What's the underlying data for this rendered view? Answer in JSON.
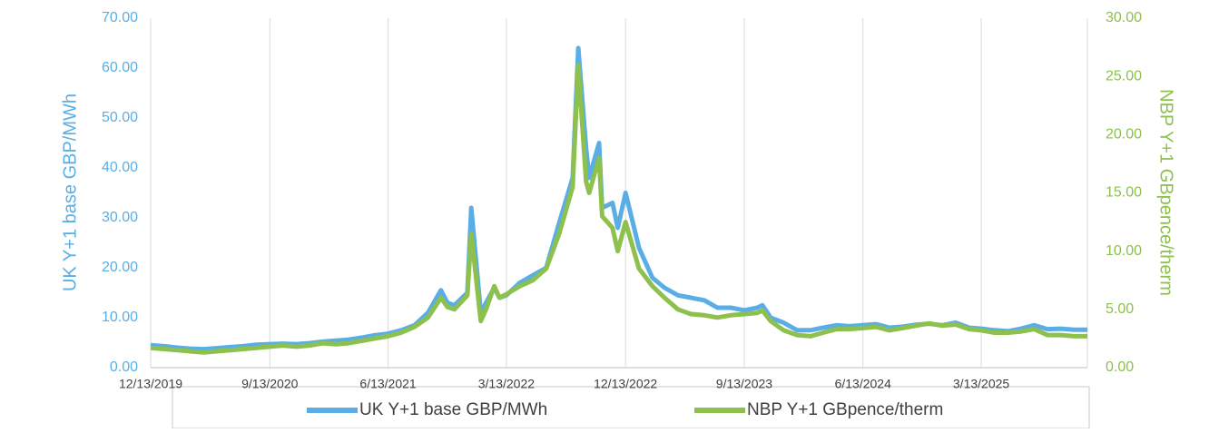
{
  "chart_data": {
    "type": "line",
    "y_label": "UK Y+1 base GBP/MWh",
    "y2_label": "NBP Y+1 GBpence/therm",
    "x": [
      "12/13/2019",
      "1/13/2020",
      "2/13/2020",
      "3/13/2020",
      "4/13/2020",
      "5/13/2020",
      "6/13/2020",
      "7/13/2020",
      "8/13/2020",
      "9/13/2020",
      "10/13/2020",
      "11/13/2020",
      "12/13/2020",
      "1/13/2021",
      "2/13/2021",
      "3/13/2021",
      "4/13/2021",
      "5/13/2021",
      "6/13/2021",
      "7/13/2021",
      "8/13/2021",
      "9/13/2021",
      "10/13/2021",
      "10/28/2021",
      "11/13/2021",
      "12/13/2021",
      "12/22/2021",
      "1/13/2022",
      "1/25/2022",
      "2/13/2022",
      "2/25/2022",
      "3/13/2022",
      "4/13/2022",
      "5/13/2022",
      "6/13/2022",
      "7/13/2022",
      "8/13/2022",
      "8/26/2022",
      "9/13/2022",
      "9/20/2022",
      "10/13/2022",
      "10/20/2022",
      "11/13/2022",
      "11/25/2022",
      "12/13/2022",
      "1/13/2023",
      "2/13/2023",
      "3/13/2023",
      "4/13/2023",
      "5/13/2023",
      "6/13/2023",
      "7/13/2023",
      "8/13/2023",
      "9/13/2023",
      "10/13/2023",
      "10/25/2023",
      "11/13/2023",
      "12/13/2023",
      "1/13/2024",
      "2/13/2024",
      "3/13/2024",
      "4/13/2024",
      "5/13/2024",
      "6/13/2024",
      "7/13/2024",
      "8/13/2024",
      "9/13/2024",
      "10/13/2024",
      "11/13/2024",
      "12/13/2024",
      "1/13/2025",
      "2/13/2025",
      "3/13/2025",
      "4/13/2025",
      "5/13/2025",
      "6/13/2025",
      "7/13/2025",
      "8/13/2025",
      "9/13/2025",
      "10/13/2025",
      "11/13/2025"
    ],
    "series": [
      {
        "name": "UK Y+1 base GBP/MWh",
        "color": "#5aaee6",
        "values": [
          4.5,
          4.3,
          4.0,
          3.8,
          3.7,
          3.9,
          4.1,
          4.3,
          4.6,
          4.7,
          4.8,
          4.7,
          4.9,
          5.2,
          5.4,
          5.6,
          6.0,
          6.5,
          6.8,
          7.5,
          8.5,
          11.0,
          15.5,
          13,
          12.5,
          15,
          32,
          11,
          13,
          16,
          14,
          14.5,
          17,
          18.5,
          20,
          29,
          38,
          64,
          44,
          38,
          45,
          32,
          33,
          28,
          35,
          24,
          18,
          16,
          14.5,
          14,
          13.5,
          12,
          12,
          11.5,
          12,
          12.5,
          10,
          9,
          7.5,
          7.5,
          8,
          8.5,
          8.3,
          8.5,
          8.7,
          8.0,
          8.2,
          8.6,
          8.8,
          8.5,
          9.0,
          8.0,
          7.8,
          7.5,
          7.3,
          7.8,
          8.5,
          7.7,
          7.8,
          7.6,
          7.6
        ]
      },
      {
        "name": "NBP Y+1 GBpence/therm",
        "color": "#8dc04c",
        "axis": "y2",
        "values": [
          1.7,
          1.6,
          1.5,
          1.4,
          1.3,
          1.4,
          1.5,
          1.6,
          1.7,
          1.8,
          1.9,
          1.8,
          1.9,
          2.1,
          2.0,
          2.1,
          2.3,
          2.5,
          2.7,
          3.0,
          3.5,
          4.3,
          6.0,
          5.2,
          5.0,
          6.2,
          11.5,
          4.0,
          5.0,
          7.0,
          6.0,
          6.3,
          7.0,
          7.5,
          8.5,
          11.5,
          15.5,
          26,
          16,
          15,
          18,
          13,
          12,
          10,
          12.5,
          8.5,
          7.0,
          6.0,
          5.0,
          4.6,
          4.5,
          4.3,
          4.5,
          4.6,
          4.7,
          4.9,
          4.0,
          3.2,
          2.8,
          2.7,
          3.0,
          3.3,
          3.3,
          3.4,
          3.5,
          3.2,
          3.4,
          3.6,
          3.8,
          3.6,
          3.7,
          3.3,
          3.2,
          3.0,
          3.0,
          3.1,
          3.3,
          2.8,
          2.8,
          2.7,
          2.7
        ]
      }
    ],
    "xlim": [
      "12/13/2019",
      "11/13/2025"
    ],
    "xticks": [
      "12/13/2019",
      "9/13/2020",
      "6/13/2021",
      "3/13/2022",
      "12/13/2022",
      "9/13/2023",
      "6/13/2024",
      "3/13/2025"
    ],
    "ylim": [
      0,
      70
    ],
    "yticks": [
      {
        "value": 0,
        "label": "0.00"
      },
      {
        "value": 10,
        "label": "10.00"
      },
      {
        "value": 20,
        "label": "20.00"
      },
      {
        "value": 30,
        "label": "30.00"
      },
      {
        "value": 40,
        "label": "40.00"
      },
      {
        "value": 50,
        "label": "50.00"
      },
      {
        "value": 60,
        "label": "60.00"
      },
      {
        "value": 70,
        "label": "70.00"
      }
    ],
    "y2lim": [
      0,
      30
    ],
    "y2ticks": [
      {
        "value": 0,
        "label": "0.00"
      },
      {
        "value": 5,
        "label": "5.00"
      },
      {
        "value": 10,
        "label": "10.00"
      },
      {
        "value": 15,
        "label": "15.00"
      },
      {
        "value": 20,
        "label": "20.00"
      },
      {
        "value": 25,
        "label": "25.00"
      },
      {
        "value": 30,
        "label": "30.00"
      }
    ],
    "grid": true,
    "legend": "bottom"
  }
}
